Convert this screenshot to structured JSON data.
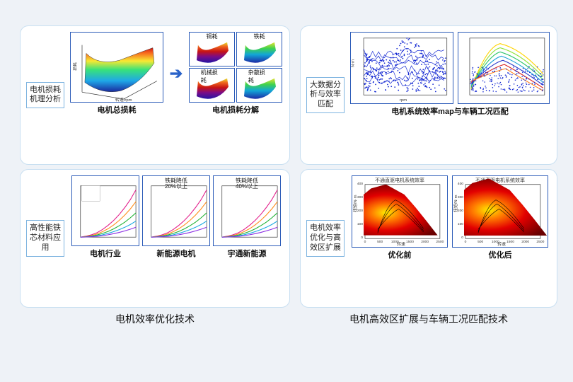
{
  "page_bg": "#eef2f7",
  "panel_border": "#c8dff1",
  "labelbox_border": "#7eb4e0",
  "thumb_border": "#2b5bb8",
  "accent_arrow": "#2a63c9",
  "left_title": "电机效率优化技术",
  "right_title": "电机高效区扩展与车辆工况匹配技术",
  "panels": {
    "tl": {
      "label": "电机损耗机理分析",
      "total_caption": "电机总损耗",
      "decomp_caption": "电机损耗分解",
      "decomp_cells": [
        "铜耗",
        "铁耗",
        "机械损耗",
        "杂散损耗"
      ],
      "surface3d": {
        "xlabel": "转速/rpm",
        "ylabel": "扭矩",
        "x_range": [
          0,
          3000
        ],
        "y_range": [
          0,
          400
        ],
        "z_gradient": [
          "#1a2a9e",
          "#1fa7e8",
          "#38e27a",
          "#f8e832",
          "#f86c1e",
          "#d11313"
        ]
      },
      "mini_surface_gradients": {
        "cu": [
          "#e5e332",
          "#f06a1e",
          "#c81414",
          "#7a0c88",
          "#2414a3"
        ],
        "fe": [
          "#e5e332",
          "#3fd24e",
          "#12a6d7",
          "#1d2aa6"
        ],
        "mech": [
          "#e5e332",
          "#f06a1e",
          "#c81414",
          "#1d2aa6"
        ],
        "stray": [
          "#e5e332",
          "#3fd24e",
          "#12a6d7",
          "#1d2aa6"
        ]
      }
    },
    "bl": {
      "label": "高性能铁芯材料应用",
      "charts": [
        {
          "cap": "电机行业",
          "badge": ""
        },
        {
          "cap": "新能源电机",
          "badge": "铁耗降低\n20%以上"
        },
        {
          "cap": "宇通新能源",
          "badge": "铁耗降低\n40%以上"
        }
      ],
      "line_series_colors": [
        "#e21d8a",
        "#ff8c1a",
        "#1fb233",
        "#19a7e0",
        "#8a2be2"
      ],
      "line_x": [
        0,
        1,
        2,
        3,
        4,
        5,
        6,
        7,
        8,
        9,
        10
      ],
      "line_families": [
        [
          0,
          0.5,
          1.2,
          2.3,
          3.9,
          6,
          8.5,
          11.5,
          15,
          19,
          24
        ],
        [
          0,
          0.3,
          0.8,
          1.6,
          2.8,
          4.3,
          6.2,
          8.5,
          11.2,
          14.3,
          18
        ],
        [
          0,
          0.2,
          0.55,
          1.1,
          1.9,
          2.9,
          4.2,
          5.8,
          7.6,
          9.8,
          12.3
        ],
        [
          0,
          0.12,
          0.35,
          0.7,
          1.2,
          1.9,
          2.8,
          3.8,
          5.0,
          6.4,
          8.1
        ],
        [
          0,
          0.06,
          0.2,
          0.42,
          0.75,
          1.2,
          1.75,
          2.4,
          3.15,
          4.0,
          5.0
        ]
      ],
      "line_xlim": [
        0,
        10
      ],
      "line_ylim": [
        0,
        26
      ]
    },
    "tr": {
      "label": "大数据分析与效率匹配",
      "caption": "电机系统效率map与车辆工况匹配",
      "scatter": {
        "color": "#1428d2",
        "xlim": [
          0,
          1500
        ],
        "ylim": [
          -6000,
          10000
        ],
        "title": "",
        "axis_color": "#333"
      },
      "effmap": {
        "xlim": [
          0,
          3500
        ],
        "ylim": [
          0,
          500
        ],
        "contour_colors": [
          "#ffd400",
          "#8fe23a",
          "#2dc56b",
          "#1b9fd8",
          "#2532c9",
          "#d71e1e",
          "#ff7e1a"
        ]
      }
    },
    "br": {
      "label": "电机效率优化与高效区扩展",
      "heat_title": "不通直驱电机系统效率",
      "before_cap": "优化前",
      "after_cap": "优化后",
      "xlim": [
        0,
        2500
      ],
      "ylim": [
        0,
        400
      ],
      "xticks": [
        0,
        500,
        1000,
        1500,
        2000,
        2500
      ],
      "yticks": [
        0,
        100,
        200,
        300,
        400
      ],
      "heat_colors": [
        "#ffeb00",
        "#ff7a00",
        "#e20000",
        "#6b0000"
      ]
    }
  }
}
